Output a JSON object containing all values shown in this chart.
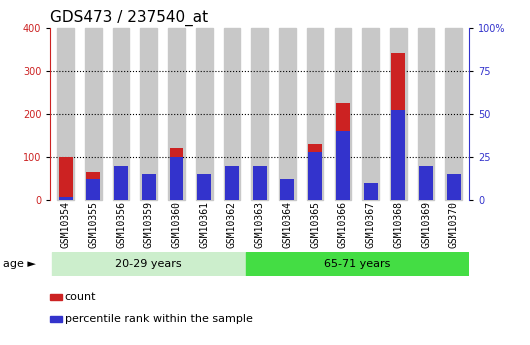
{
  "title": "GDS473 / 237540_at",
  "samples": [
    "GSM10354",
    "GSM10355",
    "GSM10356",
    "GSM10359",
    "GSM10360",
    "GSM10361",
    "GSM10362",
    "GSM10363",
    "GSM10364",
    "GSM10365",
    "GSM10366",
    "GSM10367",
    "GSM10368",
    "GSM10369",
    "GSM10370"
  ],
  "count": [
    100,
    65,
    50,
    35,
    120,
    50,
    60,
    50,
    50,
    130,
    225,
    35,
    340,
    55,
    50
  ],
  "percentile": [
    2,
    12,
    20,
    15,
    25,
    15,
    20,
    20,
    12,
    28,
    40,
    10,
    52,
    20,
    15
  ],
  "count_color": "#cc2222",
  "percentile_color": "#3333cc",
  "ylim_left": [
    0,
    400
  ],
  "ylim_right": [
    0,
    100
  ],
  "yticks_left": [
    0,
    100,
    200,
    300,
    400
  ],
  "yticks_right": [
    0,
    25,
    50,
    75,
    100
  ],
  "yticklabels_right": [
    "0",
    "25",
    "50",
    "75",
    "100%"
  ],
  "dotted_grid": [
    100,
    200,
    300
  ],
  "group1_n": 7,
  "group2_n": 8,
  "group1_label": "20-29 years",
  "group2_label": "65-71 years",
  "group1_color": "#cceecc",
  "group2_color": "#44dd44",
  "age_label": "age",
  "legend_items": [
    {
      "label": "count",
      "color": "#cc2222"
    },
    {
      "label": "percentile rank within the sample",
      "color": "#3333cc"
    }
  ],
  "bar_width": 0.5,
  "ticklabel_bg": "#c8c8c8",
  "background_color": "#ffffff",
  "title_fontsize": 11,
  "tick_fontsize": 7,
  "label_fontsize": 8,
  "perc_scale": 4.0
}
